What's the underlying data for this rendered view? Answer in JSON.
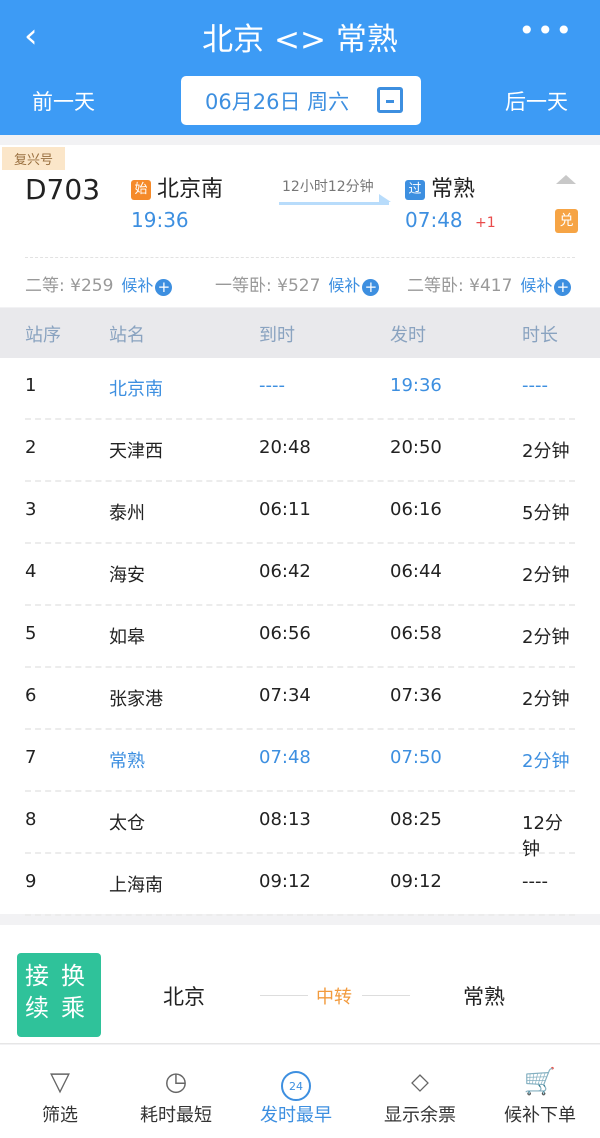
{
  "header": {
    "back_icon": "chevron-left-icon",
    "title": "北京 <> 常熟",
    "more_icon": "more-dots-icon",
    "prev_day": "前一天",
    "next_day": "后一天",
    "date": "06月26日 周六",
    "calendar_icon": "calendar-icon"
  },
  "train": {
    "tag": "复兴号",
    "number": "D703",
    "from_badge": "始",
    "from": "北京南",
    "depart": "19:36",
    "duration": "12小时12分钟",
    "to_badge": "过",
    "to": "常熟",
    "arrive": "07:48",
    "day_offset": "+1",
    "redeem_badge": "兑",
    "prices": [
      {
        "label": "二等: ¥259",
        "action": "候补"
      },
      {
        "label": "一等卧: ¥527",
        "action": "候补"
      },
      {
        "label": "二等卧: ¥417",
        "action": "候补"
      }
    ]
  },
  "table": {
    "headers": [
      "站序",
      "站名",
      "到时",
      "发时",
      "时长"
    ],
    "rows": [
      {
        "no": "1",
        "station": "北京南",
        "arrive": "----",
        "depart": "19:36",
        "stay": "----",
        "highlight": true
      },
      {
        "no": "2",
        "station": "天津西",
        "arrive": "20:48",
        "depart": "20:50",
        "stay": "2分钟"
      },
      {
        "no": "3",
        "station": "泰州",
        "arrive": "06:11",
        "depart": "06:16",
        "stay": "5分钟"
      },
      {
        "no": "4",
        "station": "海安",
        "arrive": "06:42",
        "depart": "06:44",
        "stay": "2分钟"
      },
      {
        "no": "5",
        "station": "如皋",
        "arrive": "06:56",
        "depart": "06:58",
        "stay": "2分钟"
      },
      {
        "no": "6",
        "station": "张家港",
        "arrive": "07:34",
        "depart": "07:36",
        "stay": "2分钟"
      },
      {
        "no": "7",
        "station": "常熟",
        "arrive": "07:48",
        "depart": "07:50",
        "stay": "2分钟",
        "highlight": true
      },
      {
        "no": "8",
        "station": "太仓",
        "arrive": "08:13",
        "depart": "08:25",
        "stay": "12分钟"
      },
      {
        "no": "9",
        "station": "上海南",
        "arrive": "09:12",
        "depart": "09:12",
        "stay": "----"
      }
    ]
  },
  "transfer": {
    "badge": "接换续乘",
    "from": "北京",
    "middle": "中转",
    "to": "常熟"
  },
  "tabs": [
    {
      "label": "筛选",
      "icon": "filter-icon"
    },
    {
      "label": "耗时最短",
      "icon": "stopwatch-icon"
    },
    {
      "label": "发时最早",
      "icon": "clock-24-icon",
      "active": true,
      "icon_text": "24"
    },
    {
      "label": "显示余票",
      "icon": "tag-icon"
    },
    {
      "label": "候补下单",
      "icon": "cart-plus-icon"
    }
  ]
}
